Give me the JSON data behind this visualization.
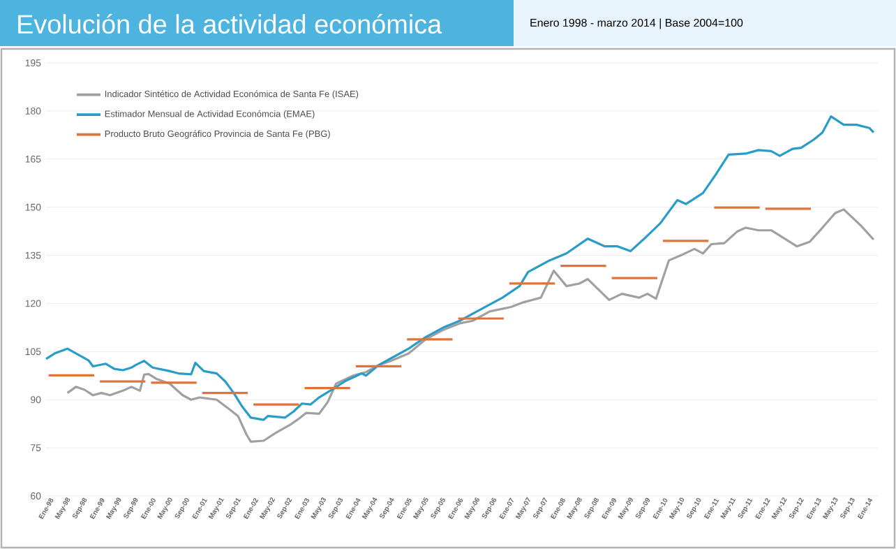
{
  "chart_data": {
    "type": "line",
    "title": "Evolución de la actividad económica",
    "subtitle": "Enero 1998 - marzo 2014 | Base 2004=100",
    "series": [
      {
        "name": "Indicador Sintético de Actividad Económica de Santa Fe (ISAE)",
        "color": "#a0a0a0",
        "x": [
          "1998-06",
          "1998-08",
          "1998-10",
          "1998-12",
          "1999-02",
          "1999-04",
          "1999-07",
          "1999-09",
          "1999-11",
          "1999-12",
          "2000-01",
          "2000-03",
          "2000-06",
          "2000-09",
          "2000-11",
          "2001-01",
          "2001-05",
          "2001-08",
          "2001-10",
          "2001-12",
          "2002-01",
          "2002-04",
          "2002-07",
          "2002-10",
          "2002-12",
          "2003-02",
          "2003-05",
          "2003-07",
          "2003-09",
          "2004-01",
          "2004-04",
          "2004-07",
          "2004-10",
          "2005-02",
          "2005-06",
          "2005-10",
          "2006-02",
          "2006-05",
          "2006-09",
          "2007-02",
          "2007-05",
          "2007-09",
          "2007-12",
          "2008-03",
          "2008-06",
          "2008-08",
          "2009-01",
          "2009-04",
          "2009-08",
          "2009-10",
          "2009-12",
          "2010-03",
          "2010-06",
          "2010-09",
          "2010-11",
          "2011-01",
          "2011-04",
          "2011-07",
          "2011-09",
          "2011-12",
          "2012-03",
          "2012-09",
          "2012-12",
          "2013-03",
          "2013-06",
          "2013-08",
          "2013-12",
          "2014-03"
        ],
        "values": [
          92.1,
          94,
          93.1,
          91.4,
          92.1,
          91.4,
          92.8,
          94,
          92.8,
          97.8,
          98,
          96.4,
          95,
          91.4,
          90,
          90.7,
          90,
          87,
          84.9,
          79.1,
          76.9,
          77.2,
          79.8,
          82,
          83.8,
          85.9,
          85.6,
          89.2,
          95,
          97.5,
          98.6,
          100.8,
          102.2,
          104.4,
          108.8,
          111.7,
          113.8,
          114.6,
          117.5,
          118.9,
          120.4,
          121.8,
          130.2,
          125.4,
          126.2,
          127.6,
          121.1,
          123,
          121.8,
          123,
          121.5,
          133.4,
          135.1,
          137,
          135.6,
          138.5,
          138.8,
          142.4,
          143.6,
          142.8,
          142.8,
          137.8,
          139.2,
          143.6,
          148.2,
          149.3,
          144.3,
          139.9
        ]
      },
      {
        "name": "Estimador Mensual de Actividad Económcia (EMAE)",
        "color": "#2a9cc8",
        "x": [
          "1998-01",
          "1998-03",
          "1998-06",
          "1998-09",
          "1998-11",
          "1998-12",
          "1999-03",
          "1999-05",
          "1999-07",
          "1999-09",
          "1999-10",
          "1999-12",
          "2000-02",
          "2000-06",
          "2000-08",
          "2000-11",
          "2000-12",
          "2001-02",
          "2001-05",
          "2001-07",
          "2001-09",
          "2001-11",
          "2002-01",
          "2002-04",
          "2002-05",
          "2002-09",
          "2002-11",
          "2003-01",
          "2003-03",
          "2003-05",
          "2003-08",
          "2003-11",
          "2004-03",
          "2004-04",
          "2004-07",
          "2004-10",
          "2005-02",
          "2005-06",
          "2005-10",
          "2006-02",
          "2006-06",
          "2006-12",
          "2007-04",
          "2007-06",
          "2007-11",
          "2008-03",
          "2008-08",
          "2008-12",
          "2009-03",
          "2009-06",
          "2009-09",
          "2010-01",
          "2010-05",
          "2010-07",
          "2010-11",
          "2011-02",
          "2011-05",
          "2011-09",
          "2011-12",
          "2012-03",
          "2012-05",
          "2012-08",
          "2012-10",
          "2013-01",
          "2013-03",
          "2013-05",
          "2013-08",
          "2013-11",
          "2014-02",
          "2014-03"
        ],
        "values": [
          102.7,
          104.4,
          105.9,
          103.7,
          102.2,
          100.4,
          101.2,
          99.6,
          99.2,
          100,
          100.8,
          102.1,
          100,
          98.9,
          98.2,
          97.9,
          101.5,
          98.9,
          98.2,
          95.7,
          92.1,
          87.8,
          84.4,
          83.7,
          84.9,
          84.4,
          86.3,
          88.8,
          88.5,
          90.7,
          93.1,
          95.7,
          98.2,
          97.5,
          100.8,
          103,
          105.9,
          109.5,
          112.4,
          114.6,
          117.5,
          121.8,
          125.4,
          129.8,
          133.4,
          135.6,
          140.2,
          137.8,
          137.8,
          136.3,
          139.9,
          145,
          152.2,
          151,
          154.4,
          160.2,
          166.4,
          166.7,
          167.8,
          167.5,
          166,
          168.2,
          168.5,
          171.1,
          173.3,
          178.3,
          175.7,
          175.7,
          174.7,
          173.3
        ]
      },
      {
        "name": "Producto Bruto Geográfico Provincia de Santa Fe (PBG)",
        "color": "#e0733a",
        "x": [
          "1998-01-20",
          "1998-12-10",
          "1998-12-25",
          "1999-01-20",
          "1999-12-10",
          "1999-12-25",
          "2000-01-20",
          "2000-12-10",
          "2000-12-25",
          "2001-01-20",
          "2001-12-10",
          "2001-12-25",
          "2002-01-20",
          "2002-12-10",
          "2002-12-25",
          "2003-01-20",
          "2003-12-10",
          "2003-12-25",
          "2004-01-20",
          "2004-12-10",
          "2004-12-25",
          "2005-01-20",
          "2005-12-10",
          "2005-12-25",
          "2006-01-20",
          "2006-12-10",
          "2006-12-25",
          "2007-01-20",
          "2007-12-10",
          "2007-12-25",
          "2008-01-20",
          "2008-12-10",
          "2008-12-25",
          "2009-01-20",
          "2009-12-10",
          "2009-12-25",
          "2010-01-20",
          "2010-12-10",
          "2010-12-25",
          "2011-01-20",
          "2011-12-10",
          "2011-12-25",
          "2012-01-20",
          "2012-12-10"
        ],
        "values": [
          97.6,
          97.6,
          null,
          95.7,
          95.7,
          null,
          95.3,
          95.3,
          null,
          92.1,
          92.1,
          null,
          88.5,
          88.5,
          null,
          93.6,
          93.6,
          null,
          100.4,
          100.4,
          null,
          108.8,
          108.8,
          null,
          115.3,
          115.3,
          null,
          126.2,
          126.2,
          null,
          131.7,
          131.7,
          null,
          127.9,
          127.9,
          null,
          139.5,
          139.5,
          null,
          149.9,
          149.9,
          null,
          149.5,
          149.5
        ]
      }
    ],
    "xlim": [
      "1998-01",
      "2014-04"
    ],
    "xticks": [
      {
        "value": "1998-01",
        "label": "Ene-98"
      },
      {
        "value": "1998-05",
        "label": "May-98"
      },
      {
        "value": "1998-09",
        "label": "Sep-98"
      },
      {
        "value": "1999-01",
        "label": "Ene-99"
      },
      {
        "value": "1999-05",
        "label": "May-99"
      },
      {
        "value": "1999-09",
        "label": "Sep-99"
      },
      {
        "value": "2000-01",
        "label": "Ene-00"
      },
      {
        "value": "2000-05",
        "label": "May-00"
      },
      {
        "value": "2000-09",
        "label": "Sep-00"
      },
      {
        "value": "2001-01",
        "label": "Ene-01"
      },
      {
        "value": "2001-05",
        "label": "May-01"
      },
      {
        "value": "2001-09",
        "label": "Sep-01"
      },
      {
        "value": "2002-01",
        "label": "Ene-02"
      },
      {
        "value": "2002-05",
        "label": "May-02"
      },
      {
        "value": "2002-09",
        "label": "Sep-02"
      },
      {
        "value": "2003-01",
        "label": "Ene-03"
      },
      {
        "value": "2003-05",
        "label": "May-03"
      },
      {
        "value": "2003-09",
        "label": "Sep-03"
      },
      {
        "value": "2004-01",
        "label": "Ene-04"
      },
      {
        "value": "2004-05",
        "label": "May-04"
      },
      {
        "value": "2004-09",
        "label": "Sep-04"
      },
      {
        "value": "2005-01",
        "label": "Ene-05"
      },
      {
        "value": "2005-05",
        "label": "May-05"
      },
      {
        "value": "2005-09",
        "label": "Sep-05"
      },
      {
        "value": "2006-01",
        "label": "Ene-06"
      },
      {
        "value": "2006-05",
        "label": "May-06"
      },
      {
        "value": "2006-09",
        "label": "Sep-06"
      },
      {
        "value": "2007-01",
        "label": "Ene-07"
      },
      {
        "value": "2007-05",
        "label": "May-07"
      },
      {
        "value": "2007-09",
        "label": "Sep-07"
      },
      {
        "value": "2008-01",
        "label": "Ene-08"
      },
      {
        "value": "2008-05",
        "label": "May-08"
      },
      {
        "value": "2008-09",
        "label": "Sep-08"
      },
      {
        "value": "2009-01",
        "label": "Ene-09"
      },
      {
        "value": "2009-05",
        "label": "May-09"
      },
      {
        "value": "2009-09",
        "label": "Sep-09"
      },
      {
        "value": "2010-01",
        "label": "Ene-10"
      },
      {
        "value": "2010-05",
        "label": "May-10"
      },
      {
        "value": "2010-09",
        "label": "Sep-10"
      },
      {
        "value": "2011-01",
        "label": "Ene-11"
      },
      {
        "value": "2011-05",
        "label": "May-11"
      },
      {
        "value": "2011-09",
        "label": "Sep-11"
      },
      {
        "value": "2012-01",
        "label": "Ene-12"
      },
      {
        "value": "2012-05",
        "label": "May-12"
      },
      {
        "value": "2012-09",
        "label": "Sep-12"
      },
      {
        "value": "2013-01",
        "label": "Ene-13"
      },
      {
        "value": "2013-05",
        "label": "May-13"
      },
      {
        "value": "2013-09",
        "label": "Sep-13"
      },
      {
        "value": "2014-01",
        "label": "Ene-14"
      }
    ],
    "ylim": [
      60,
      195
    ],
    "yticks": [
      60,
      75,
      90,
      105,
      120,
      135,
      150,
      165,
      180,
      195
    ],
    "grid": "y",
    "legend": "top left"
  }
}
